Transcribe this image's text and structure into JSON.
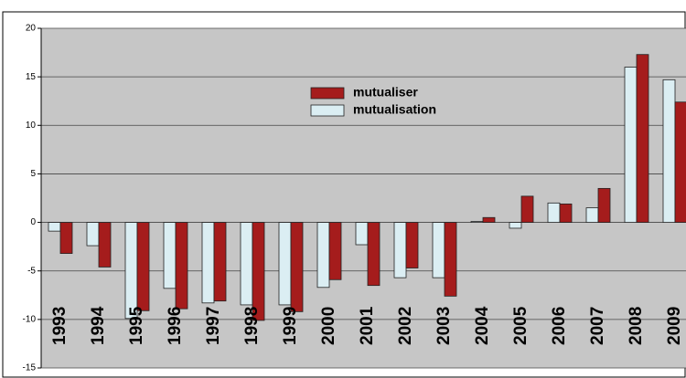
{
  "chart_data": {
    "type": "bar",
    "categories": [
      "1993",
      "1994",
      "1995",
      "1996",
      "1997",
      "1998",
      "1999",
      "2000",
      "2001",
      "2002",
      "2003",
      "2004",
      "2005",
      "2006",
      "2007",
      "2008",
      "2009"
    ],
    "series": [
      {
        "name": "mutualisation",
        "color": "#dbeef3",
        "values": [
          -0.9,
          -2.4,
          -9.9,
          -6.8,
          -8.3,
          -8.5,
          -8.5,
          -6.7,
          -2.3,
          -5.7,
          -5.7,
          0.1,
          -0.6,
          2.0,
          1.5,
          16.0,
          14.7
        ]
      },
      {
        "name": "mutualiser",
        "color": "#a51c1c",
        "values": [
          -3.2,
          -4.6,
          -9.1,
          -8.9,
          -8.1,
          -10.1,
          -9.2,
          -5.9,
          -6.5,
          -4.7,
          -7.6,
          0.5,
          2.7,
          1.9,
          3.5,
          17.3,
          12.4
        ]
      }
    ],
    "ylim": [
      -15,
      20
    ],
    "yticks": [
      -15,
      -10,
      -5,
      0,
      5,
      10,
      15,
      20
    ],
    "grid": true
  }
}
